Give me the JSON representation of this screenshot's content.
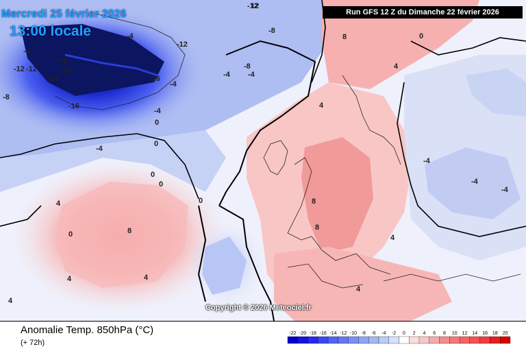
{
  "overlay": {
    "date": "Mercredi 25 février 2026",
    "time": "13:00 locale",
    "run": "Run GFS 12 Z du Dimanche 22 février 2026",
    "copyright": "Copyright © 2026 Meteociel.fr"
  },
  "footer": {
    "title": "Anomalie Temp. 850hPa (°C)",
    "subtitle": "(+ 72h)"
  },
  "legend": {
    "labels": [
      "-22",
      "-20",
      "-18",
      "-16",
      "-14",
      "-12",
      "-10",
      "-8",
      "-6",
      "-4",
      "-2",
      "0",
      "2",
      "4",
      "6",
      "8",
      "10",
      "12",
      "14",
      "16",
      "18",
      "20"
    ],
    "colors": [
      "#0000c8",
      "#1414dc",
      "#2828f0",
      "#3c46f5",
      "#5064f5",
      "#6478f5",
      "#7890f5",
      "#8ca5f5",
      "#a0b9f5",
      "#b9cdf8",
      "#d7e1fa",
      "#ffffff",
      "#fadcdc",
      "#f8c8c8",
      "#f5aaaa",
      "#f58c8c",
      "#f57878",
      "#f56464",
      "#f55050",
      "#f03c3c",
      "#e61e1e",
      "#dc0000"
    ]
  },
  "map_labels": [
    {
      "text": "-20",
      "color": "#ffffff"
    },
    {
      "text": "-20",
      "color": "#ffffff"
    },
    {
      "text": "-16",
      "color": "#ffffff"
    },
    {
      "text": "-16",
      "color": "#ffffff"
    },
    {
      "text": "-16",
      "color": "#ffffff"
    },
    {
      "text": "-12",
      "color": "#ffffff"
    },
    {
      "text": "-12",
      "color": "#ffffff"
    },
    {
      "text": "-12",
      "color": "#ffffff"
    },
    {
      "text": "-12",
      "color": "#ffffff"
    },
    {
      "text": "-8",
      "color": "#ffffff"
    },
    {
      "text": "-8",
      "color": "#ffffff"
    },
    {
      "text": "-8",
      "color": "#ffffff"
    },
    {
      "text": "-4",
      "color": "#ffffff"
    },
    {
      "text": "-4",
      "color": "#ffffff"
    },
    {
      "text": "-4",
      "color": "#ffffff"
    },
    {
      "text": "-4",
      "color": "#ffffff"
    },
    {
      "text": "-4",
      "color": "#ffffff"
    },
    {
      "text": "-4",
      "color": "#ffffff"
    },
    {
      "text": "-4",
      "color": "#ffffff"
    },
    {
      "text": "0",
      "color": "#ffffff"
    },
    {
      "text": "0",
      "color": "#ffffff"
    },
    {
      "text": "0",
      "color": "#ffffff"
    },
    {
      "text": "0",
      "color": "#ffffff"
    },
    {
      "text": "0",
      "color": "#ffffff"
    },
    {
      "text": "4",
      "color": "#ffffff"
    },
    {
      "text": "4",
      "color": "#ffffff"
    },
    {
      "text": "4",
      "color": "#ffffff"
    },
    {
      "text": "4",
      "color": "#ffffff"
    },
    {
      "text": "4",
      "color": "#ffffff"
    },
    {
      "text": "4",
      "color": "#ffffff"
    },
    {
      "text": "8",
      "color": "#ffffff"
    },
    {
      "text": "8",
      "color": "#ffffff"
    },
    {
      "text": "8",
      "color": "#ffffff"
    },
    {
      "text": "8",
      "color": "#ffffff"
    },
    {
      "text": "12",
      "color": "#ffffff"
    },
    {
      "text": "-4",
      "color": "#ffffff"
    },
    {
      "text": "-4",
      "color": "#ffffff"
    },
    {
      "text": "-4",
      "color": "#ffffff"
    },
    {
      "text": "0",
      "color": "#ffffff"
    },
    {
      "text": "0",
      "color": "#ffffff"
    },
    {
      "text": "4",
      "color": "#ffffff"
    },
    {
      "text": "4",
      "color": "#ffffff"
    }
  ]
}
